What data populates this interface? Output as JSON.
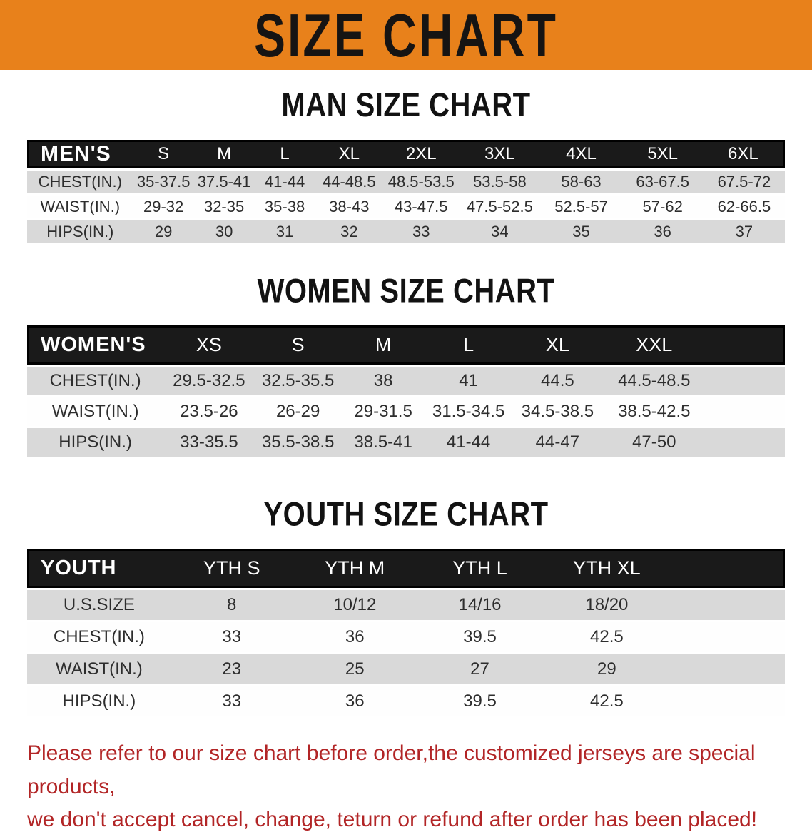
{
  "banner": {
    "title": "SIZE CHART"
  },
  "colors": {
    "banner_bg": "#e8811b",
    "header_bar": "#1a1a1a",
    "row_stripe": "#d9d9d9",
    "disclaimer_red": "#b22526"
  },
  "sections": [
    {
      "heading": "MAN SIZE CHART",
      "table": {
        "header": [
          "MEN'S",
          "S",
          "M",
          "L",
          "XL",
          "2XL",
          "3XL",
          "4XL",
          "5XL",
          "6XL"
        ],
        "rows": [
          {
            "label": "CHEST(IN.)",
            "values": [
              "35-37.5",
              "37.5-41",
              "41-44",
              "44-48.5",
              "48.5-53.5",
              "53.5-58",
              "58-63",
              "63-67.5",
              "67.5-72"
            ]
          },
          {
            "label": "WAIST(IN.)",
            "values": [
              "29-32",
              "32-35",
              "35-38",
              "38-43",
              "43-47.5",
              "47.5-52.5",
              "52.5-57",
              "57-62",
              "62-66.5"
            ]
          },
          {
            "label": "HIPS(IN.)",
            "values": [
              "29",
              "30",
              "31",
              "32",
              "33",
              "34",
              "35",
              "36",
              "37"
            ]
          }
        ]
      }
    },
    {
      "heading": "WOMEN SIZE CHART",
      "table": {
        "header": [
          "WOMEN'S",
          "XS",
          "S",
          "M",
          "L",
          "XL",
          "XXL"
        ],
        "rows": [
          {
            "label": "CHEST(IN.)",
            "values": [
              "29.5-32.5",
              "32.5-35.5",
              "38",
              "41",
              "44.5",
              "44.5-48.5"
            ]
          },
          {
            "label": "WAIST(IN.)",
            "values": [
              "23.5-26",
              "26-29",
              "29-31.5",
              "31.5-34.5",
              "34.5-38.5",
              "38.5-42.5"
            ]
          },
          {
            "label": "HIPS(IN.)",
            "values": [
              "33-35.5",
              "35.5-38.5",
              "38.5-41",
              "41-44",
              "44-47",
              "47-50"
            ]
          }
        ]
      }
    },
    {
      "heading": "YOUTH SIZE CHART",
      "table": {
        "header": [
          "YOUTH",
          "YTH S",
          "YTH M",
          "YTH L",
          "YTH XL"
        ],
        "rows": [
          {
            "label": "U.S.SIZE",
            "values": [
              "8",
              "10/12",
              "14/16",
              "18/20"
            ]
          },
          {
            "label": "CHEST(IN.)",
            "values": [
              "33",
              "36",
              "39.5",
              "42.5"
            ]
          },
          {
            "label": "WAIST(IN.)",
            "values": [
              "23",
              "25",
              "27",
              "29"
            ]
          },
          {
            "label": "HIPS(IN.)",
            "values": [
              "33",
              "36",
              "39.5",
              "42.5"
            ]
          }
        ]
      }
    }
  ],
  "footer": {
    "line1": "Please refer to our size chart before order,the customized jerseys are special products,",
    "line2": "we don't accept cancel, change, teturn or refund after order has been placed!"
  }
}
